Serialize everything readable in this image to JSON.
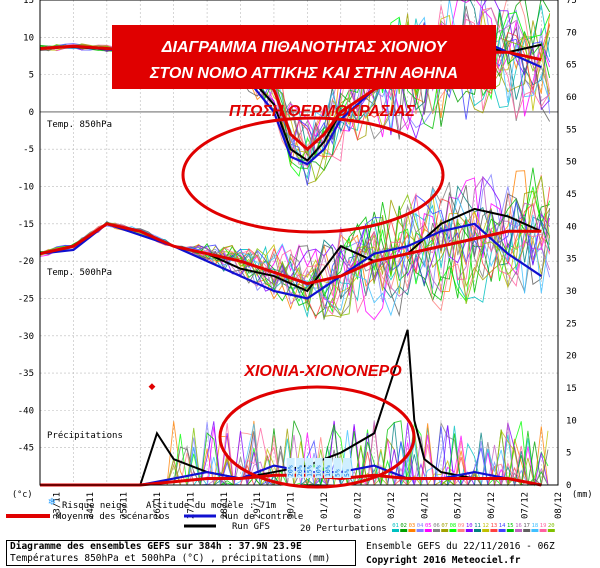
{
  "chart_data": {
    "type": "line",
    "title_lines": [
      "ΔΙΑΓΡΑΜΜΑ ΠΙΘΑΝΟΤΗΤΑΣ ΧΙΟΝΙΟΥ",
      "ΣΤΟΝ ΝΟΜΟ ΑΤΤΙΚΗΣ ΚΑΙ ΣΤΗΝ ΑΘΗΝΑ"
    ],
    "annotations": [
      "ΠΤΩΣΗ ΘΕΡΜΟΚΡΑΣΙΑΣ",
      "ΧΙΟΝΙΑ-ΧΙΟΝΟΝΕΡΟ"
    ],
    "panel_labels": {
      "t850": "Temp. 850hPa",
      "t500": "Temp. 500hPa",
      "precip": "Précipitations"
    },
    "left_axis": {
      "unit": "(°c)",
      "ticks": [
        15,
        10,
        5,
        0,
        -5,
        -10,
        -15,
        -20,
        -25,
        -30,
        -35,
        -40,
        -45
      ],
      "ylim": [
        -50,
        15
      ]
    },
    "right_axis": {
      "unit": "(mm)",
      "ticks": [
        75,
        70,
        65,
        60,
        55,
        50,
        45,
        40,
        35,
        30,
        25,
        20,
        15,
        10,
        5,
        0
      ],
      "ylim": [
        0,
        75
      ]
    },
    "x_ticks": [
      "23/11",
      "24/11",
      "25/11",
      "26/11",
      "27/11",
      "28/11",
      "29/11",
      "30/11",
      "01/12",
      "02/12",
      "03/12",
      "04/12",
      "05/12",
      "06/12",
      "07/12",
      "08/12"
    ],
    "snow_risk_labels": [
      "20%",
      "20%",
      "15%",
      "10%",
      "10%",
      "5%",
      "5%"
    ],
    "legend": {
      "mean": "Moyenne des scénarios",
      "control": "Run de contrôle",
      "gfs": "Run GFS",
      "perturbations": "20 Perturbations",
      "snow_risk": "Risque neige",
      "altitude": "Altitude du modèle : 71m",
      "member_numbers": [
        "01",
        "02",
        "03",
        "04",
        "05",
        "06",
        "07",
        "08",
        "09",
        "10",
        "11",
        "12",
        "13",
        "14",
        "15",
        "16",
        "17",
        "18",
        "19",
        "20"
      ]
    },
    "series_t850": [
      {
        "name": "Moyenne des scénarios",
        "x": [
          0,
          1,
          2,
          3,
          4,
          5,
          6,
          7,
          7.5,
          8,
          8.5,
          9,
          10,
          11,
          12,
          13,
          14,
          15
        ],
        "y": [
          8.5,
          8.8,
          8.5,
          8.2,
          7.5,
          7,
          6.5,
          3,
          -3,
          -5,
          -3,
          0,
          3,
          5,
          6,
          8,
          8,
          7
        ]
      },
      {
        "name": "Run de contrôle",
        "x": [
          0,
          1,
          2,
          3,
          4,
          5,
          6,
          7,
          7.5,
          8,
          8.5,
          9,
          10,
          11,
          12,
          13,
          14,
          15
        ],
        "y": [
          8.5,
          8.8,
          8.4,
          8,
          7,
          6.8,
          5.5,
          0,
          -6,
          -7,
          -5,
          -1,
          3,
          7,
          8,
          10,
          8,
          6
        ]
      },
      {
        "name": "Run GFS",
        "x": [
          0,
          1,
          2,
          3,
          4,
          5,
          6,
          7,
          7.5,
          8,
          8.5,
          9,
          10,
          11,
          12,
          13,
          14,
          15
        ],
        "y": [
          8.5,
          8.7,
          8.4,
          8.1,
          7.3,
          7,
          6,
          1,
          -5,
          -6.5,
          -4,
          0,
          3,
          6,
          7,
          9,
          8,
          9
        ]
      }
    ],
    "series_t500": [
      {
        "name": "Moyenne des scénarios",
        "x": [
          0,
          1,
          2,
          3,
          4,
          5,
          6,
          7,
          8,
          9,
          10,
          11,
          12,
          13,
          14,
          15
        ],
        "y": [
          -19,
          -18,
          -15,
          -16,
          -18,
          -19,
          -20,
          -21.5,
          -23,
          -22,
          -20,
          -19,
          -18,
          -17,
          -16,
          -16
        ]
      },
      {
        "name": "Run de contrôle",
        "x": [
          0,
          1,
          2,
          3,
          4,
          5,
          6,
          7,
          8,
          9,
          10,
          11,
          12,
          13,
          14,
          15
        ],
        "y": [
          -19,
          -18.5,
          -15,
          -16.5,
          -18,
          -20,
          -22,
          -24,
          -25,
          -22,
          -19,
          -18,
          -16,
          -15,
          -19,
          -22
        ]
      },
      {
        "name": "Run GFS",
        "x": [
          0,
          1,
          2,
          3,
          4,
          5,
          6,
          7,
          8,
          9,
          10,
          11,
          12,
          13,
          14,
          15
        ],
        "y": [
          -19,
          -18,
          -15,
          -16,
          -18,
          -19,
          -21,
          -22,
          -24,
          -18,
          -20,
          -19,
          -15,
          -13,
          -14,
          -16
        ]
      }
    ],
    "series_precip_mm": [
      {
        "name": "Moyenne des scénarios",
        "x": [
          0,
          2,
          3,
          4,
          5,
          6,
          7,
          8,
          9,
          10,
          11,
          12,
          13,
          14,
          15
        ],
        "y": [
          0,
          0,
          0,
          0.5,
          1,
          1,
          1.5,
          1.5,
          1,
          1.5,
          1,
          1,
          1,
          1,
          0
        ]
      },
      {
        "name": "Run de contrôle",
        "x": [
          0,
          2,
          3,
          4,
          5,
          6,
          7,
          8,
          9,
          10,
          11,
          12,
          13,
          14,
          15
        ],
        "y": [
          0,
          0,
          0,
          1,
          2,
          1,
          3,
          2,
          2,
          3,
          1,
          1,
          2,
          1,
          0
        ]
      },
      {
        "name": "Run GFS",
        "x": [
          0,
          2,
          3,
          3.5,
          4,
          5,
          6,
          7,
          8,
          9,
          10,
          11,
          11.2,
          11.5,
          12,
          13,
          14,
          15
        ],
        "y": [
          0,
          0,
          0,
          8,
          4,
          2,
          1,
          2,
          3,
          5,
          8,
          24,
          10,
          4,
          2,
          1,
          1,
          0
        ]
      }
    ]
  },
  "footer": {
    "line1": "Diagramme des ensembles GEFS sur 384h : 37.9N 23.9E",
    "line2": "Températures 850hPa et 500hPa (°C) , précipitations (mm)",
    "ensemble": "Ensemble GEFS du 22/11/2016 - 06Z",
    "copyright": "Copyright 2016 Meteociel.fr"
  },
  "colors": {
    "mean": "#e00000",
    "control": "#1010d0",
    "gfs": "#000000",
    "title_box": "#e00000",
    "annotation": "#e00000",
    "ellipse": "#e00000",
    "zero_line": "#999999",
    "grid": "#bbbbbb"
  }
}
